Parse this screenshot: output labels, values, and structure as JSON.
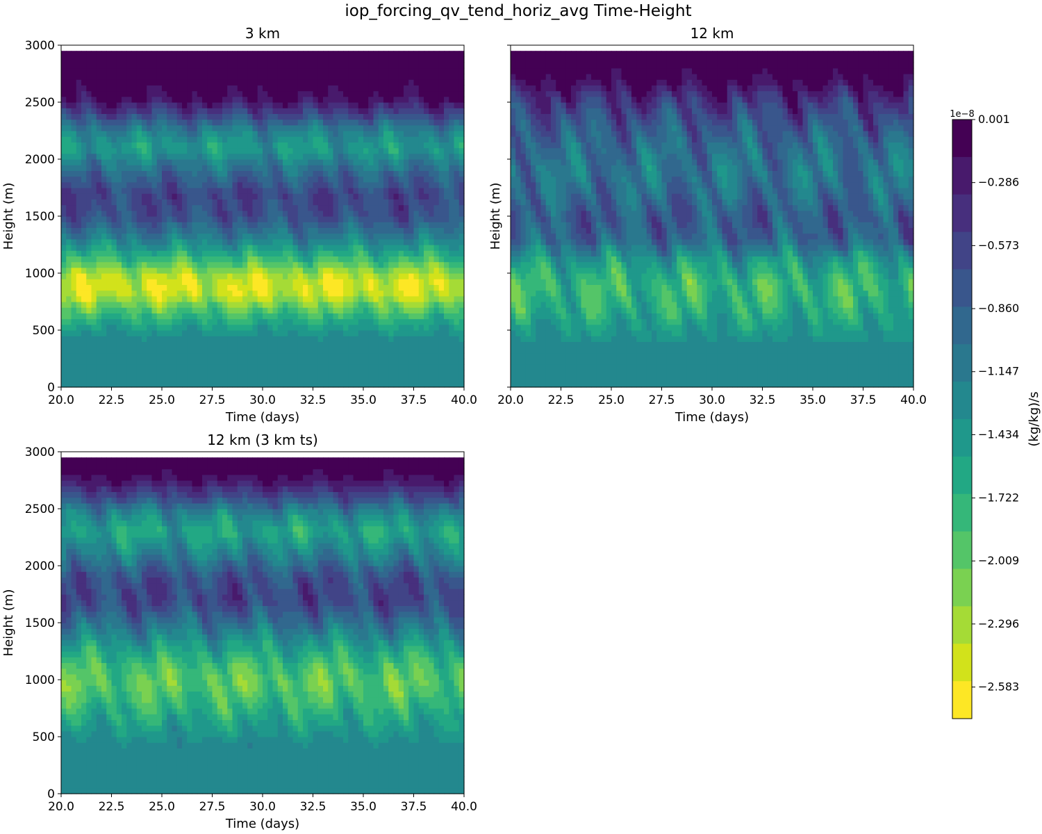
{
  "figure": {
    "title": "iop_forcing_qv_tend_horiz_avg Time-Height"
  },
  "chart_data": [
    {
      "type": "heatmap",
      "title": "3 km",
      "xlabel": "Time (days)",
      "ylabel": "Height (m)",
      "xlim": [
        20,
        40
      ],
      "ylim": [
        0,
        3000
      ],
      "data_top": 2950,
      "xticks": [
        20,
        22.5,
        25,
        27.5,
        30,
        32.5,
        35,
        37.5,
        40
      ],
      "xtick_labels": [
        "20.0",
        "22.5",
        "25.0",
        "27.5",
        "30.0",
        "32.5",
        "35.0",
        "37.5",
        "40.0"
      ],
      "yticks": [
        0,
        500,
        1000,
        1500,
        2000,
        2500,
        3000
      ],
      "ytick_labels": [
        "0",
        "500",
        "1000",
        "1500",
        "2000",
        "2500",
        "3000"
      ],
      "profile": {
        "heights": [
          0,
          400,
          550,
          700,
          800,
          900,
          1000,
          1100,
          1300,
          1500,
          1700,
          1900,
          2100,
          2250,
          2400,
          2550,
          2700,
          2950
        ],
        "values": [
          -1.2,
          -1.25,
          -1.55,
          -2.0,
          -2.4,
          -2.5,
          -2.3,
          -1.9,
          -1.2,
          -0.7,
          -0.6,
          -1.0,
          -1.5,
          -1.2,
          -0.6,
          -0.1,
          0.0,
          0.0
        ]
      },
      "variability": 0.35,
      "seed": 3
    },
    {
      "type": "heatmap",
      "title": "12 km",
      "xlabel": "Time (days)",
      "ylabel": "Height (m)",
      "xlim": [
        20,
        40
      ],
      "ylim": [
        0,
        3000
      ],
      "data_top": 2950,
      "xticks": [
        20,
        22.5,
        25,
        27.5,
        30,
        32.5,
        35,
        37.5,
        40
      ],
      "xtick_labels": [
        "20.0",
        "22.5",
        "25.0",
        "27.5",
        "30.0",
        "32.5",
        "35.0",
        "37.5",
        "40.0"
      ],
      "yticks": [
        0,
        500,
        1000,
        1500,
        2000,
        2500,
        3000
      ],
      "ytick_labels": [
        "",
        "",
        "",
        "",
        "",
        "",
        ""
      ],
      "profile": {
        "heights": [
          0,
          300,
          500,
          700,
          900,
          1100,
          1300,
          1500,
          1700,
          1900,
          2100,
          2300,
          2500,
          2700,
          2950
        ],
        "values": [
          -1.2,
          -1.25,
          -1.45,
          -1.7,
          -1.8,
          -1.5,
          -0.9,
          -0.8,
          -1.0,
          -1.1,
          -1.0,
          -0.8,
          -0.5,
          -0.1,
          0.0
        ]
      },
      "variability": 0.5,
      "seed": 12
    },
    {
      "type": "heatmap",
      "title": "12 km (3 km ts)",
      "xlabel": "Time (days)",
      "ylabel": "Height (m)",
      "xlim": [
        20,
        40
      ],
      "ylim": [
        0,
        3000
      ],
      "data_top": 2950,
      "xticks": [
        20,
        22.5,
        25,
        27.5,
        30,
        32.5,
        35,
        37.5,
        40
      ],
      "xtick_labels": [
        "20.0",
        "22.5",
        "25.0",
        "27.5",
        "30.0",
        "32.5",
        "35.0",
        "37.5",
        "40.0"
      ],
      "yticks": [
        0,
        500,
        1000,
        1500,
        2000,
        2500,
        3000
      ],
      "ytick_labels": [
        "0",
        "500",
        "1000",
        "1500",
        "2000",
        "2500",
        "3000"
      ],
      "profile": {
        "heights": [
          0,
          400,
          600,
          800,
          950,
          1100,
          1300,
          1500,
          1700,
          1900,
          2100,
          2300,
          2450,
          2600,
          2750,
          2950
        ],
        "values": [
          -1.2,
          -1.25,
          -1.5,
          -1.8,
          -2.0,
          -1.9,
          -1.5,
          -1.0,
          -0.6,
          -0.7,
          -1.2,
          -1.6,
          -1.3,
          -0.7,
          -0.2,
          0.0
        ]
      },
      "variability": 0.4,
      "seed": 7
    }
  ],
  "colorbar": {
    "label": "(kg/kg)/s",
    "offset_text": "1e−8",
    "vmin": -2.727,
    "vmax": 0.001,
    "levels": 19,
    "tick_values": [
      0.001,
      -0.286,
      -0.573,
      -0.86,
      -1.147,
      -1.434,
      -1.722,
      -2.009,
      -2.296,
      -2.583
    ],
    "tick_labels": [
      "0.001",
      "−0.286",
      "−0.573",
      "−0.860",
      "−1.147",
      "−1.434",
      "−1.722",
      "−2.009",
      "−2.296",
      "−2.583"
    ],
    "colors": [
      "#440154",
      "#481a6c",
      "#472f7d",
      "#414487",
      "#39568c",
      "#31688e",
      "#2a788e",
      "#23888e",
      "#1f988b",
      "#22a884",
      "#35b779",
      "#54c568",
      "#7ad151",
      "#a5db36",
      "#d2e21b",
      "#fde725"
    ]
  }
}
